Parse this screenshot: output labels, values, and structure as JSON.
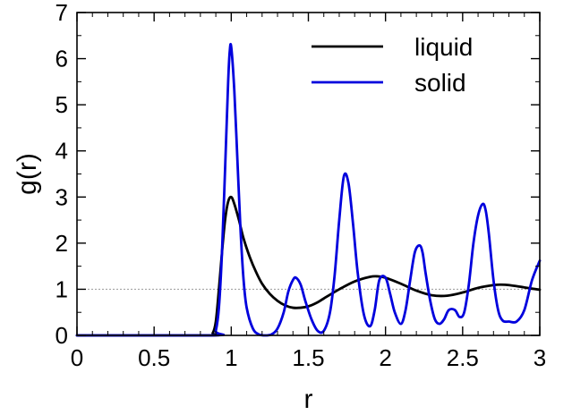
{
  "chart_data": {
    "type": "line",
    "xlabel": "r",
    "ylabel": "g(r)",
    "xlim": [
      0,
      3
    ],
    "ylim": [
      0,
      7
    ],
    "x_ticks": [
      "0",
      "0.5",
      "1",
      "1.5",
      "2",
      "2.5",
      "3"
    ],
    "y_ticks": [
      "0",
      "1",
      "2",
      "3",
      "4",
      "5",
      "6",
      "7"
    ],
    "reference_line": {
      "y": 1,
      "style": "dotted",
      "color": "#999999"
    },
    "legend_position": "top-right",
    "series": [
      {
        "name": "liquid",
        "color": "#000000",
        "x": [
          0,
          0.85,
          0.88,
          0.9,
          0.92,
          0.94,
          0.96,
          0.98,
          1.0,
          1.02,
          1.05,
          1.08,
          1.12,
          1.16,
          1.2,
          1.25,
          1.3,
          1.35,
          1.4,
          1.45,
          1.5,
          1.55,
          1.6,
          1.7,
          1.8,
          1.9,
          1.95,
          2.0,
          2.1,
          2.2,
          2.3,
          2.4,
          2.5,
          2.6,
          2.7,
          2.75,
          2.8,
          2.9,
          3.0
        ],
        "values": [
          0,
          0,
          0.05,
          0.3,
          1.0,
          1.8,
          2.5,
          2.9,
          3.0,
          2.85,
          2.5,
          2.1,
          1.7,
          1.38,
          1.12,
          0.9,
          0.75,
          0.65,
          0.6,
          0.6,
          0.63,
          0.7,
          0.8,
          1.0,
          1.17,
          1.27,
          1.28,
          1.25,
          1.12,
          0.97,
          0.87,
          0.86,
          0.93,
          1.03,
          1.09,
          1.1,
          1.09,
          1.04,
          0.99
        ]
      },
      {
        "name": "solid",
        "color": "#0000dd",
        "x": [
          0,
          0.88,
          0.9,
          0.92,
          0.94,
          0.96,
          0.98,
          0.99,
          1.0,
          1.02,
          1.04,
          1.06,
          1.08,
          1.1,
          1.14,
          1.18,
          1.22,
          1.26,
          1.3,
          1.34,
          1.37,
          1.4,
          1.42,
          1.45,
          1.48,
          1.52,
          1.56,
          1.6,
          1.64,
          1.67,
          1.7,
          1.73,
          1.76,
          1.79,
          1.82,
          1.86,
          1.9,
          1.93,
          1.96,
          2.0,
          2.03,
          2.06,
          2.1,
          2.13,
          2.16,
          2.19,
          2.22,
          2.24,
          2.26,
          2.29,
          2.32,
          2.35,
          2.38,
          2.41,
          2.45,
          2.48,
          2.51,
          2.54,
          2.57,
          2.6,
          2.63,
          2.65,
          2.67,
          2.7,
          2.73,
          2.76,
          2.8,
          2.85,
          2.9,
          2.95,
          3.0
        ],
        "values": [
          0,
          0,
          0.1,
          0.6,
          1.8,
          3.6,
          5.5,
          6.15,
          6.25,
          5.3,
          3.8,
          2.3,
          1.2,
          0.6,
          0.15,
          0.02,
          0,
          0.02,
          0.15,
          0.5,
          0.95,
          1.2,
          1.25,
          1.1,
          0.75,
          0.35,
          0.1,
          0.1,
          0.5,
          1.3,
          2.5,
          3.45,
          3.3,
          2.4,
          1.35,
          0.45,
          0.2,
          0.55,
          1.2,
          1.25,
          0.9,
          0.5,
          0.25,
          0.55,
          1.2,
          1.8,
          1.95,
          1.8,
          1.35,
          0.75,
          0.35,
          0.25,
          0.35,
          0.55,
          0.55,
          0.4,
          0.5,
          1.1,
          2.0,
          2.6,
          2.85,
          2.7,
          2.2,
          1.2,
          0.55,
          0.32,
          0.3,
          0.3,
          0.55,
          1.2,
          1.62
        ]
      }
    ]
  }
}
